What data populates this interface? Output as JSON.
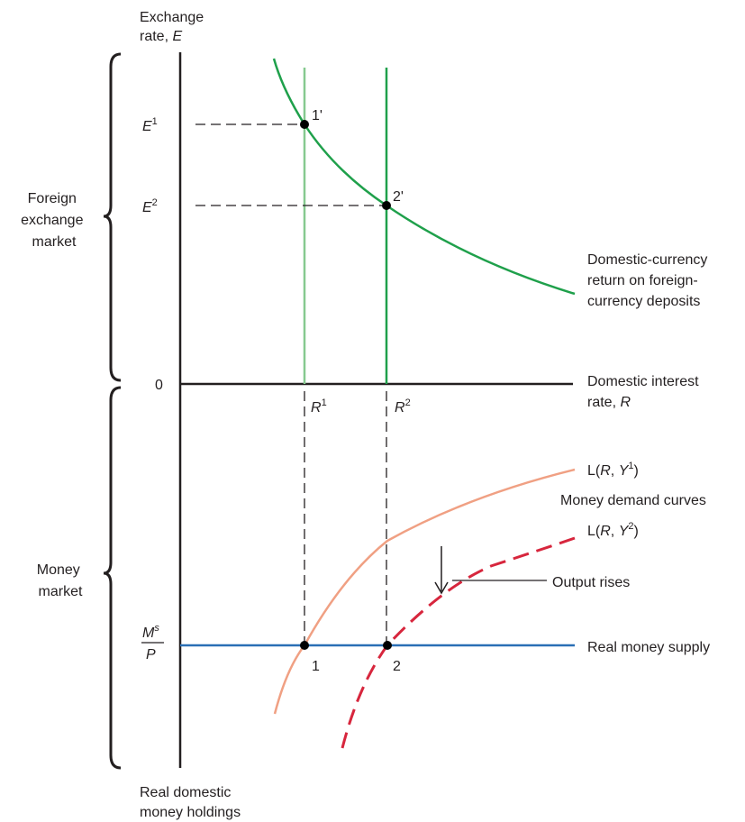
{
  "labels": {
    "y_axis_line1": "Exchange",
    "y_axis_line2_prefix": "rate, ",
    "y_axis_line2_var": "E",
    "x_axis_line1": "Domestic interest",
    "x_axis_line2_prefix": "rate, ",
    "x_axis_line2_var": "R",
    "bottom_line1": "Real domestic",
    "bottom_line2": "money holdings",
    "zero": "0"
  },
  "sections": {
    "foreign_exchange": [
      "Foreign",
      "exchange",
      "market"
    ],
    "money_market": [
      "Money",
      "market"
    ]
  },
  "exchange_rates": {
    "e1_var": "E",
    "e1_sup": "1",
    "e2_var": "E",
    "e2_sup": "2"
  },
  "interest_rates": {
    "r1_var": "R",
    "r1_sup": "1",
    "r2_var": "R",
    "r2_sup": "2"
  },
  "money_supply": {
    "numerator_var": "M",
    "numerator_sup": "s",
    "denominator_var": "P",
    "label": "Real money supply"
  },
  "curves": {
    "foreign_return": [
      "Domestic-currency",
      "return on foreign-",
      "currency deposits"
    ],
    "demand_title": "Money demand curves",
    "l1": {
      "prefix": "L(",
      "var1": "R",
      "sep": ", ",
      "var2": "Y",
      "sup": "1",
      "suffix": ")"
    },
    "l2": {
      "prefix": "L(",
      "var1": "R",
      "sep": ", ",
      "var2": "Y",
      "sup": "2",
      "suffix": ")"
    },
    "output_rises": "Output rises"
  },
  "points": {
    "p1_prime": "1'",
    "p2_prime": "2'",
    "p1": "1",
    "p2": "2"
  },
  "colors": {
    "axis": "#231f20",
    "foreign_return_curve": "#1fa04b",
    "r1_line": "#86c98f",
    "r2_line": "#1fa04b",
    "money_supply_line": "#2a6fb5",
    "l1_curve": "#f0a083",
    "l2_curve": "#d7263d",
    "guide": "#231f20"
  }
}
